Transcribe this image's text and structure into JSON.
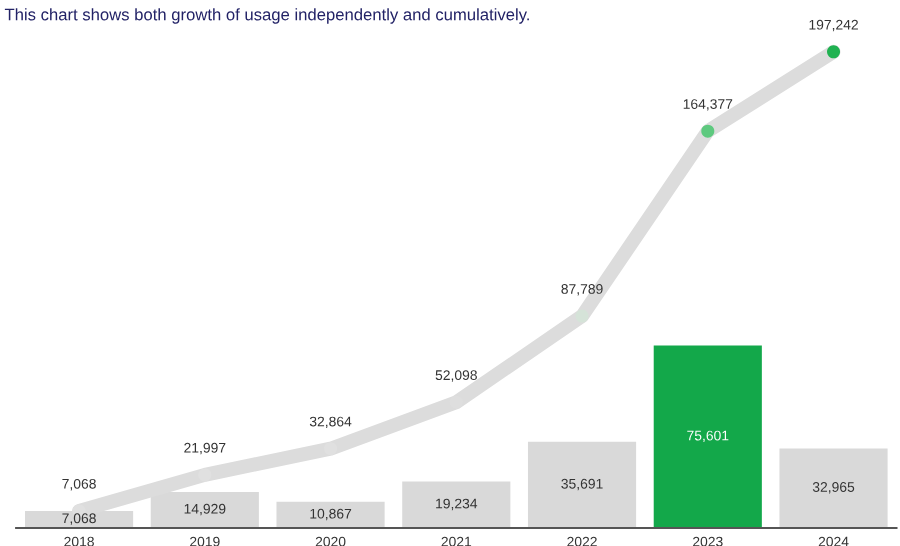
{
  "chart_data": {
    "type": "bar",
    "title": "This chart shows both growth of usage independently and cumulatively.",
    "categories": [
      "2018",
      "2019",
      "2020",
      "2021",
      "2022",
      "2023",
      "2024"
    ],
    "series": [
      {
        "colors": [
          "#d9d9d9",
          "#d9d9d9",
          "#d9d9d9",
          "#d9d9d9",
          "#d9d9d9",
          "#13a84a",
          "#d9d9d9"
        ],
        "values": [
          7068,
          14929,
          10867,
          19234,
          35691,
          75601,
          32965
        ],
        "value_labels": [
          "7,068",
          "14,929",
          "10,867",
          "19,234",
          "35,691",
          "75,601",
          "32,965"
        ]
      },
      {
        "type": "line",
        "color": "#dcdcdc",
        "colors": [
          "#e0e0e0",
          "#e0e0e0",
          "#e0e0e0",
          "#dedede",
          "#d5e3d8",
          "#5ec97f",
          "#20b251"
        ],
        "values": [
          7068,
          21997,
          32864,
          52098,
          87789,
          164377,
          197242
        ],
        "value_labels": [
          "7,068",
          "21,997",
          "32,864",
          "52,098",
          "87,789",
          "164,377",
          "197,242"
        ]
      }
    ],
    "marker": "circle"
  }
}
